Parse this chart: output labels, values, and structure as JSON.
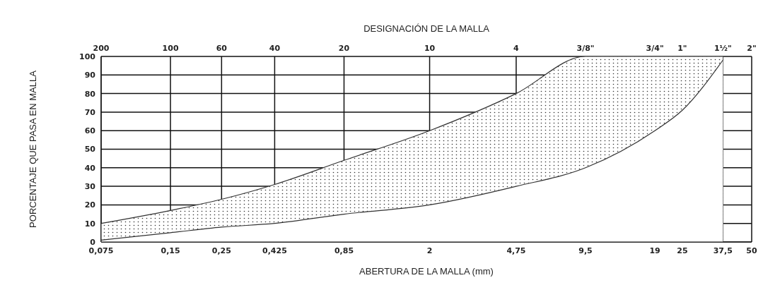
{
  "chart_data": {
    "type": "area",
    "x2label": "DESIGNACIÓN DE LA MALLA",
    "xlabel": "ABERTURA DE LA MALLA (mm)",
    "ylabel": "PORCENTAJE QUE PASA EN MALLA",
    "x": [
      0.075,
      0.15,
      0.25,
      0.425,
      0.85,
      2,
      4.75,
      9.5,
      19,
      25,
      37.5
    ],
    "series": [
      {
        "color": "#333333",
        "values": [
          10,
          17,
          23,
          31,
          44,
          60,
          80,
          100,
          100,
          100,
          100
        ]
      },
      {
        "color": "#333333",
        "values": [
          1,
          5,
          8,
          10,
          15,
          20,
          30,
          40,
          60,
          71,
          98
        ]
      }
    ],
    "log": "x",
    "xlim": [
      0.075,
      50
    ],
    "xticks": [
      {
        "value": 0.075,
        "label": "0,075"
      },
      {
        "value": 0.15,
        "label": "0,15"
      },
      {
        "value": 0.25,
        "label": "0,25"
      },
      {
        "value": 0.425,
        "label": "0,425"
      },
      {
        "value": 0.85,
        "label": "0,85"
      },
      2,
      {
        "value": 4.75,
        "label": "4,75"
      },
      {
        "value": 9.5,
        "label": "9,5"
      },
      19,
      25,
      {
        "value": 37.5,
        "label": "37,5"
      },
      50
    ],
    "annotations": [
      "200",
      "100",
      "60",
      "40",
      "20",
      "10",
      "4",
      "3/8\"",
      "3/4\"",
      "1\"",
      "1½\"",
      "2\""
    ],
    "ylim": [
      0,
      100
    ],
    "yticks": [
      0,
      10,
      20,
      30,
      40,
      50,
      60,
      70,
      80,
      90,
      100
    ],
    "grid": true,
    "marker": "none",
    "line_style": "solid"
  }
}
